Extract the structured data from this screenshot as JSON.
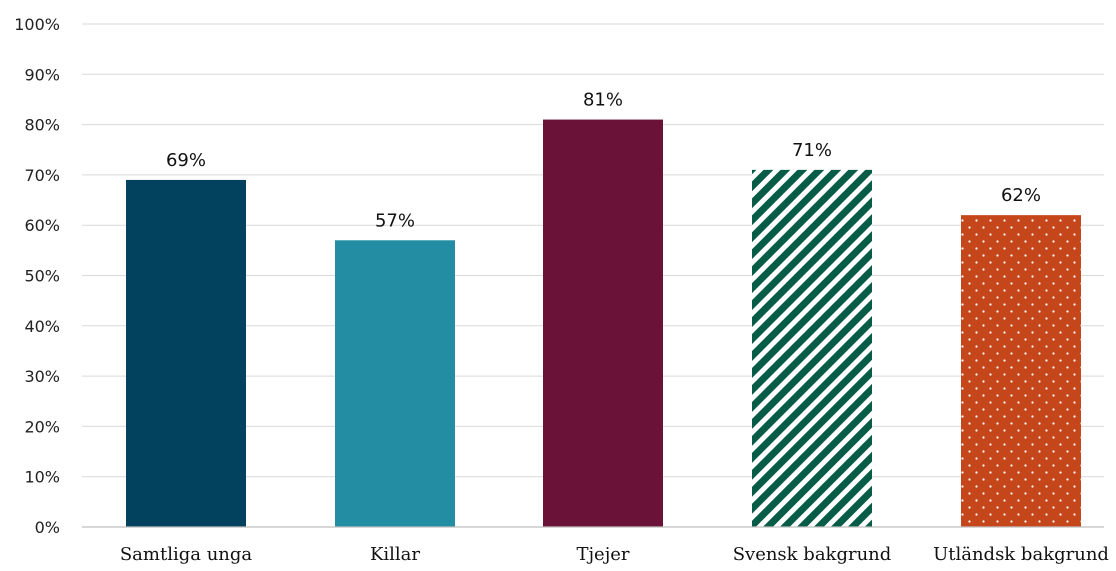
{
  "chart_data": {
    "type": "bar",
    "title": "",
    "xlabel": "",
    "ylabel": "",
    "categories": [
      "Samtliga unga",
      "Killar",
      "Tjejer",
      "Svensk bakgrund",
      "Utländsk bakgrund"
    ],
    "values": [
      69,
      57,
      81,
      71,
      62
    ],
    "data_labels": [
      "69%",
      "57%",
      "81%",
      "71%",
      "62%"
    ],
    "ylim": [
      0,
      100
    ],
    "yticks": [
      0,
      10,
      20,
      30,
      40,
      50,
      60,
      70,
      80,
      90,
      100
    ],
    "ytick_labels": [
      "0%",
      "10%",
      "20%",
      "30%",
      "40%",
      "50%",
      "60%",
      "70%",
      "80%",
      "90%",
      "100%"
    ],
    "grid": true,
    "legend": "none",
    "bar_styles": [
      {
        "color": "#03425f",
        "pattern": "solid"
      },
      {
        "color": "#228da3",
        "pattern": "solid"
      },
      {
        "color": "#6b1238",
        "pattern": "solid"
      },
      {
        "color": "#075c47",
        "pattern": "diagonal-stripes"
      },
      {
        "color": "#c6461c",
        "pattern": "dots"
      }
    ]
  }
}
